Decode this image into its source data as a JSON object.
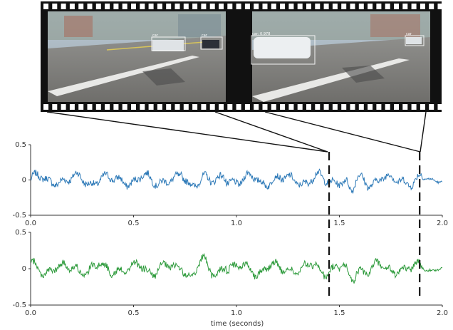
{
  "film": {
    "frame1": {
      "detections": [
        "car",
        "car"
      ]
    },
    "frame2": {
      "detections": [
        "car: 0.978",
        "car"
      ]
    }
  },
  "chart_data": [
    {
      "type": "line",
      "xlim": [
        0,
        2
      ],
      "ylim": [
        -0.5,
        0.5
      ],
      "xticks": [
        "0.0",
        "0.5",
        "1.0",
        "1.5",
        "2.0"
      ],
      "yticks": [
        "0.5",
        "0",
        "-0.5"
      ],
      "color": "#2e7ab8",
      "series": [
        {
          "name": "",
          "values": "signal"
        }
      ],
      "markers_x": [
        1.45,
        1.89
      ]
    },
    {
      "type": "line",
      "xlim": [
        0,
        2
      ],
      "ylim": [
        -0.5,
        0.5
      ],
      "xticks": [
        "0.0",
        "0.5",
        "1.0",
        "1.5",
        "2.0"
      ],
      "yticks": [
        "0.5",
        "0",
        "-0.5"
      ],
      "xlabel": "time (seconds)",
      "color": "#2e9b3c",
      "series": [
        {
          "name": "",
          "values": "signal"
        }
      ],
      "markers_x": [
        1.45,
        1.89
      ]
    }
  ]
}
